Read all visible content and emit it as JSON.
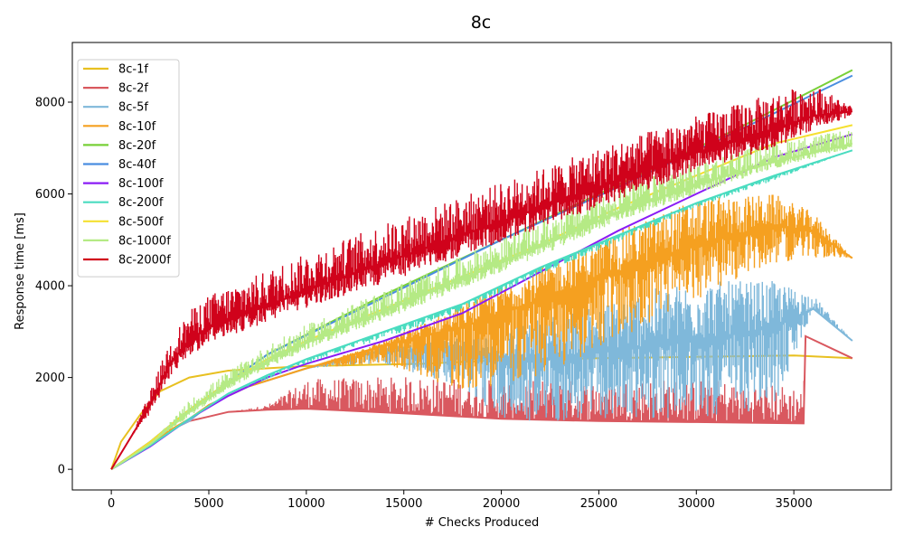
{
  "chart_data": {
    "type": "line",
    "title": "8c",
    "xlabel": "# Checks Produced",
    "ylabel": "Response time [ms]",
    "xlim": [
      -2000,
      40000
    ],
    "ylim": [
      -450,
      9300
    ],
    "xticks": [
      0,
      5000,
      10000,
      15000,
      20000,
      25000,
      30000,
      35000
    ],
    "yticks": [
      0,
      2000,
      4000,
      6000,
      8000
    ],
    "grid": false,
    "legend_position": "top-left",
    "series": [
      {
        "name": "8c-1f",
        "color": "#e8c020",
        "points": [
          [
            0,
            0
          ],
          [
            500,
            600
          ],
          [
            1500,
            1200
          ],
          [
            2500,
            1700
          ],
          [
            4000,
            2000
          ],
          [
            6000,
            2150
          ],
          [
            10000,
            2250
          ],
          [
            16000,
            2300
          ],
          [
            20000,
            2380
          ],
          [
            25000,
            2420
          ],
          [
            30000,
            2450
          ],
          [
            35000,
            2480
          ],
          [
            38000,
            2420
          ]
        ],
        "noise_lo": [
          0,
          0,
          0,
          0,
          0,
          0,
          0,
          0,
          0,
          0,
          0,
          0,
          0
        ],
        "noise_hi": [
          0,
          0,
          0,
          0,
          0,
          0,
          0,
          0,
          0,
          0,
          0,
          0,
          0
        ],
        "density": 0
      },
      {
        "name": "8c-2f",
        "color": "#d9585f",
        "points": [
          [
            0,
            0
          ],
          [
            1000,
            300
          ],
          [
            2000,
            600
          ],
          [
            3000,
            850
          ],
          [
            4000,
            1050
          ],
          [
            5000,
            1150
          ],
          [
            6000,
            1250
          ],
          [
            8000,
            1300
          ],
          [
            10000,
            1320
          ],
          [
            15000,
            1220
          ],
          [
            20000,
            1100
          ],
          [
            25000,
            1050
          ],
          [
            30000,
            1030
          ],
          [
            35500,
            1000
          ],
          [
            35600,
            2900
          ],
          [
            38000,
            2420
          ]
        ],
        "noise_lo": [
          0,
          0,
          0,
          0,
          0,
          0,
          0,
          0,
          0,
          0,
          0,
          0,
          0,
          0,
          0,
          0
        ],
        "noise_hi": [
          0,
          0,
          0,
          0,
          0,
          0,
          0,
          100,
          650,
          800,
          850,
          900,
          950,
          800,
          0,
          0
        ],
        "density": 120
      },
      {
        "name": "8c-5f",
        "color": "#7fb8da",
        "points": [
          [
            0,
            0
          ],
          [
            1000,
            260
          ],
          [
            2000,
            560
          ],
          [
            3000,
            850
          ],
          [
            4000,
            1050
          ],
          [
            5000,
            1400
          ],
          [
            7000,
            1800
          ],
          [
            10000,
            2200
          ],
          [
            14000,
            2600
          ],
          [
            18000,
            2600
          ],
          [
            20000,
            2450
          ],
          [
            22000,
            2400
          ],
          [
            26000,
            2600
          ],
          [
            30000,
            2800
          ],
          [
            34000,
            3100
          ],
          [
            36000,
            3500
          ],
          [
            38000,
            2800
          ]
        ],
        "noise_lo": [
          0,
          0,
          0,
          0,
          0,
          0,
          0,
          0,
          300,
          800,
          1400,
          1400,
          1500,
          1700,
          1800,
          0,
          0
        ],
        "noise_hi": [
          0,
          0,
          0,
          0,
          0,
          0,
          0,
          0,
          100,
          300,
          500,
          900,
          1200,
          1300,
          1000,
          300,
          0
        ],
        "density": 140
      },
      {
        "name": "8c-10f",
        "color": "#f5a020",
        "points": [
          [
            0,
            0
          ],
          [
            1000,
            280
          ],
          [
            2000,
            560
          ],
          [
            3000,
            850
          ],
          [
            4000,
            1100
          ],
          [
            5000,
            1400
          ],
          [
            7000,
            1800
          ],
          [
            10000,
            2200
          ],
          [
            14000,
            2700
          ],
          [
            18000,
            3100
          ],
          [
            22000,
            3700
          ],
          [
            26000,
            4300
          ],
          [
            30000,
            4900
          ],
          [
            34000,
            5300
          ],
          [
            36000,
            5200
          ],
          [
            38000,
            4600
          ]
        ],
        "noise_lo": [
          0,
          0,
          0,
          0,
          0,
          0,
          0,
          0,
          400,
          1400,
          1700,
          1500,
          1200,
          800,
          600,
          0
        ],
        "noise_hi": [
          0,
          0,
          0,
          0,
          0,
          0,
          0,
          0,
          100,
          500,
          700,
          900,
          1000,
          700,
          400,
          0
        ],
        "density": 140
      },
      {
        "name": "8c-20f",
        "color": "#78d038",
        "points": [
          [
            0,
            0
          ],
          [
            2000,
            600
          ],
          [
            4000,
            1300
          ],
          [
            8000,
            2500
          ],
          [
            14000,
            3800
          ],
          [
            20000,
            5000
          ],
          [
            26000,
            6200
          ],
          [
            32000,
            7400
          ],
          [
            38000,
            8700
          ]
        ],
        "noise_lo": [
          0,
          0,
          0,
          0,
          0,
          0,
          0,
          0,
          0
        ],
        "noise_hi": [
          0,
          0,
          0,
          0,
          0,
          0,
          0,
          0,
          0
        ],
        "density": 0
      },
      {
        "name": "8c-40f",
        "color": "#4a8ee0",
        "points": [
          [
            0,
            0
          ],
          [
            2000,
            600
          ],
          [
            4000,
            1300
          ],
          [
            8000,
            2500
          ],
          [
            14000,
            3750
          ],
          [
            20000,
            5000
          ],
          [
            26000,
            6150
          ],
          [
            32000,
            7350
          ],
          [
            38000,
            8580
          ]
        ],
        "noise_lo": [
          0,
          0,
          0,
          0,
          0,
          0,
          0,
          0,
          0
        ],
        "noise_hi": [
          0,
          0,
          0,
          0,
          0,
          0,
          0,
          0,
          0
        ],
        "density": 0
      },
      {
        "name": "8c-100f",
        "color": "#8a1cf5",
        "points": [
          [
            0,
            0
          ],
          [
            2000,
            500
          ],
          [
            4000,
            1100
          ],
          [
            6000,
            1600
          ],
          [
            8000,
            2000
          ],
          [
            10000,
            2300
          ],
          [
            14000,
            2800
          ],
          [
            18000,
            3400
          ],
          [
            22000,
            4300
          ],
          [
            26000,
            5200
          ],
          [
            30000,
            6000
          ],
          [
            34000,
            6800
          ],
          [
            38000,
            7300
          ]
        ],
        "noise_lo": [
          0,
          0,
          0,
          0,
          0,
          0,
          0,
          0,
          0,
          0,
          0,
          0,
          0
        ],
        "noise_hi": [
          0,
          0,
          0,
          0,
          0,
          0,
          0,
          0,
          0,
          0,
          0,
          0,
          0
        ],
        "density": 0
      },
      {
        "name": "8c-200f",
        "color": "#4adcc0",
        "points": [
          [
            0,
            0
          ],
          [
            2000,
            520
          ],
          [
            4000,
            1100
          ],
          [
            6000,
            1650
          ],
          [
            8000,
            2050
          ],
          [
            10000,
            2400
          ],
          [
            14000,
            3000
          ],
          [
            18000,
            3600
          ],
          [
            22000,
            4400
          ],
          [
            26000,
            5100
          ],
          [
            30000,
            5800
          ],
          [
            34000,
            6400
          ],
          [
            38000,
            6950
          ]
        ],
        "noise_lo": [
          0,
          0,
          0,
          0,
          100,
          100,
          150,
          150,
          150,
          150,
          100,
          100,
          0
        ],
        "noise_hi": [
          0,
          0,
          0,
          0,
          0,
          0,
          0,
          0,
          0,
          0,
          0,
          0,
          0
        ],
        "density": 110
      },
      {
        "name": "8c-500f",
        "color": "#f5e030",
        "points": [
          [
            0,
            0
          ],
          [
            2000,
            600
          ],
          [
            4000,
            1300
          ],
          [
            6000,
            1900
          ],
          [
            8000,
            2400
          ],
          [
            10000,
            2800
          ],
          [
            14000,
            3500
          ],
          [
            18000,
            4200
          ],
          [
            22000,
            4900
          ],
          [
            26000,
            5700
          ],
          [
            30000,
            6400
          ],
          [
            34000,
            7100
          ],
          [
            38000,
            7500
          ]
        ],
        "noise_lo": [
          0,
          0,
          0,
          0,
          0,
          0,
          0,
          0,
          0,
          0,
          0,
          0,
          0
        ],
        "noise_hi": [
          0,
          0,
          0,
          0,
          0,
          0,
          0,
          0,
          0,
          0,
          0,
          0,
          0
        ],
        "density": 0
      },
      {
        "name": "8c-1000f",
        "color": "#b5ea85",
        "points": [
          [
            0,
            0
          ],
          [
            2000,
            550
          ],
          [
            4000,
            1250
          ],
          [
            6000,
            1850
          ],
          [
            8000,
            2350
          ],
          [
            10000,
            2750
          ],
          [
            14000,
            3450
          ],
          [
            18000,
            4150
          ],
          [
            22000,
            4850
          ],
          [
            26000,
            5600
          ],
          [
            30000,
            6200
          ],
          [
            34000,
            6700
          ],
          [
            38000,
            7100
          ]
        ],
        "noise_lo": [
          0,
          0,
          100,
          100,
          150,
          150,
          200,
          200,
          200,
          200,
          200,
          150,
          100
        ],
        "noise_hi": [
          0,
          0,
          250,
          300,
          350,
          400,
          450,
          500,
          550,
          550,
          500,
          450,
          300
        ],
        "density": 130
      },
      {
        "name": "8c-2000f",
        "color": "#d0021b",
        "points": [
          [
            0,
            0
          ],
          [
            1000,
            700
          ],
          [
            2000,
            1400
          ],
          [
            3000,
            2300
          ],
          [
            4000,
            2800
          ],
          [
            5000,
            3100
          ],
          [
            7000,
            3400
          ],
          [
            10000,
            3900
          ],
          [
            14000,
            4500
          ],
          [
            18000,
            5100
          ],
          [
            22000,
            5700
          ],
          [
            26000,
            6300
          ],
          [
            30000,
            6900
          ],
          [
            34000,
            7400
          ],
          [
            36000,
            7700
          ],
          [
            38000,
            7800
          ]
        ],
        "noise_lo": [
          0,
          0,
          200,
          300,
          350,
          350,
          350,
          400,
          450,
          450,
          450,
          450,
          400,
          400,
          300,
          100
        ],
        "noise_hi": [
          0,
          0,
          300,
          500,
          650,
          700,
          750,
          800,
          850,
          850,
          850,
          850,
          800,
          800,
          700,
          100
        ],
        "density": 150
      }
    ]
  }
}
